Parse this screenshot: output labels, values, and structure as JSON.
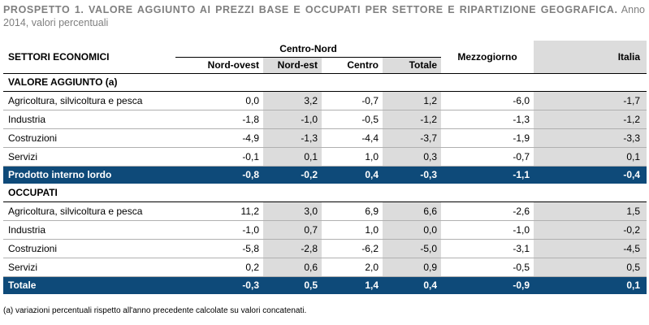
{
  "title": {
    "bold": "PROSPETTO 1. VALORE AGGIUNTO AI PREZZI BASE E OCCUPATI PER SETTORE E RIPARTIZIONE GEOGRAFICA.",
    "rest": " Anno 2014, valori percentuali"
  },
  "header": {
    "settori": "SETTORI ECONOMICI",
    "centro_nord": "Centro-Nord",
    "nord_ovest": "Nord-ovest",
    "nord_est": "Nord-est",
    "centro": "Centro",
    "totale": "Totale",
    "mezzogiorno": "Mezzogiorno",
    "italia": "Italia"
  },
  "sections": [
    {
      "label": "VALORE AGGIUNTO (a)",
      "rows": [
        {
          "name": "Agricoltura, silvicoltura e pesca",
          "values": [
            "0,0",
            "3,2",
            "-0,7",
            "1,2",
            "-6,0",
            "-1,7"
          ]
        },
        {
          "name": "Industria",
          "values": [
            "-1,8",
            "-1,0",
            "-0,5",
            "-1,2",
            "-1,3",
            "-1,2"
          ]
        },
        {
          "name": "Costruzioni",
          "values": [
            "-4,9",
            "-1,3",
            "-4,4",
            "-3,7",
            "-1,9",
            "-3,3"
          ]
        },
        {
          "name": "Servizi",
          "values": [
            "-0,1",
            "0,1",
            "1,0",
            "0,3",
            "-0,7",
            "0,1"
          ]
        }
      ],
      "total": {
        "name": "Prodotto interno lordo",
        "values": [
          "-0,8",
          "-0,2",
          "0,4",
          "-0,3",
          "-1,1",
          "-0,4"
        ]
      }
    },
    {
      "label": "OCCUPATI",
      "rows": [
        {
          "name": "Agricoltura, silvicoltura e pesca",
          "values": [
            "11,2",
            "3,0",
            "6,9",
            "6,6",
            "-2,6",
            "1,5"
          ]
        },
        {
          "name": "Industria",
          "values": [
            "-1,0",
            "0,7",
            "1,0",
            "0,0",
            "-1,0",
            "-0,2"
          ]
        },
        {
          "name": "Costruzioni",
          "values": [
            "-5,8",
            "-2,8",
            "-6,2",
            "-5,0",
            "-3,1",
            "-4,5"
          ]
        },
        {
          "name": "Servizi",
          "values": [
            "0,2",
            "0,6",
            "2,0",
            "0,9",
            "-0,5",
            "0,5"
          ]
        }
      ],
      "total": {
        "name": "Totale",
        "values": [
          "-0,3",
          "0,5",
          "1,4",
          "0,4",
          "-0,9",
          "0,1"
        ]
      }
    }
  ],
  "note": "(a) variazioni percentuali rispetto all'anno precedente calcolate su valori concatenati."
}
